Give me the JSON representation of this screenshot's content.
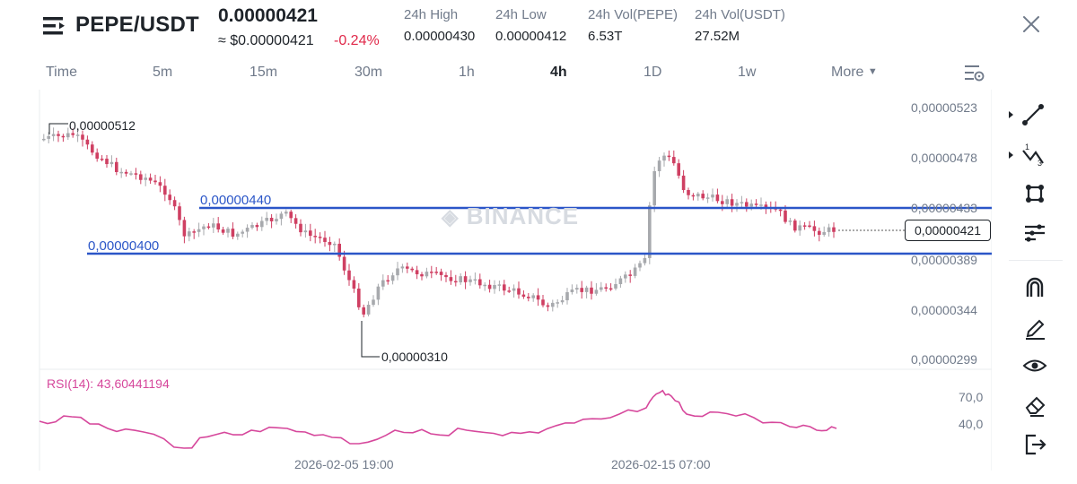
{
  "header": {
    "pair": "PEPE/USDT",
    "price": "0.00000421",
    "price_approx": "≈ $0.00000421",
    "change": "-0.24%",
    "stats": [
      {
        "label": "24h High",
        "value": "0.00000430"
      },
      {
        "label": "24h Low",
        "value": "0.00000412"
      },
      {
        "label": "24h Vol(PEPE)",
        "value": "6.53T"
      },
      {
        "label": "24h Vol(USDT)",
        "value": "27.52M"
      }
    ]
  },
  "tabs": [
    "Time",
    "5m",
    "15m",
    "30m",
    "1h",
    "4h",
    "1D",
    "1w",
    "More"
  ],
  "active_tab": "4h",
  "price_axis": [
    "0,00000523",
    "0,00000478",
    "0,00000433",
    "0,00000389",
    "0,00000344",
    "0,00000299"
  ],
  "current_price_label": "0,00000421",
  "horizontal_lines": [
    {
      "label": "0,00000440",
      "price": 4.4e-06
    },
    {
      "label": "0,00000400",
      "price": 4e-06
    }
  ],
  "extremes": {
    "high": "0,00000512",
    "low": "0,00000310"
  },
  "watermark": "BINANCE",
  "rsi": {
    "label": "RSI(14): 43,60441194",
    "axis": [
      "70,0",
      "40,0"
    ]
  },
  "dates": [
    "2026-02-05 19:00",
    "2026-02-15 07:00"
  ],
  "colors": {
    "up": "#a7a9ad",
    "down": "#cf3f62",
    "line": "#2b56c8",
    "rsi": "#d6489c"
  },
  "toolbar": [
    "trendline-icon",
    "fibonacci-icon",
    "shape-icon",
    "indicator-icon",
    "magnet-icon",
    "pencil-icon",
    "eye-icon",
    "eraser-icon",
    "exit-icon"
  ]
}
